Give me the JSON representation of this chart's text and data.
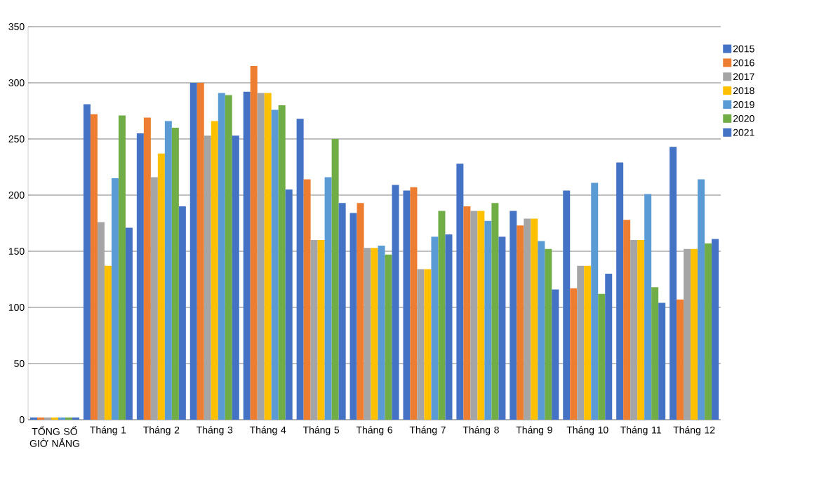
{
  "chart_data": {
    "type": "bar",
    "categories": [
      "TỔNG SỐ GIỜ NẮNG",
      "Tháng 1",
      "Tháng 2",
      "Tháng 3",
      "Tháng 4",
      "Tháng 5",
      "Tháng 6",
      "Tháng 7",
      "Tháng 8",
      "Tháng 9",
      "Tháng 10",
      "Tháng 11",
      "Tháng 12"
    ],
    "series": [
      {
        "name": "2015",
        "color": "#4472c4",
        "values": [
          2,
          281,
          255,
          300,
          292,
          268,
          184,
          204,
          228,
          186,
          204,
          229,
          243
        ]
      },
      {
        "name": "2016",
        "color": "#ed7d31",
        "values": [
          2,
          272,
          269,
          300,
          315,
          214,
          193,
          207,
          190,
          173,
          117,
          178,
          107
        ]
      },
      {
        "name": "2017",
        "color": "#a5a5a5",
        "values": [
          2,
          176,
          216,
          253,
          291,
          160,
          153,
          134,
          186,
          179,
          137,
          160,
          152
        ]
      },
      {
        "name": "2018",
        "color": "#ffc000",
        "values": [
          2,
          137,
          237,
          266,
          291,
          160,
          153,
          134,
          186,
          179,
          137,
          160,
          152
        ]
      },
      {
        "name": "2019",
        "color": "#5b9bd5",
        "values": [
          2,
          215,
          266,
          291,
          276,
          216,
          155,
          163,
          177,
          159,
          211,
          201,
          214
        ]
      },
      {
        "name": "2020",
        "color": "#70ad47",
        "values": [
          2,
          271,
          260,
          289,
          280,
          250,
          147,
          186,
          193,
          152,
          112,
          118,
          157
        ]
      },
      {
        "name": "2021",
        "color": "#4472c4",
        "values": [
          2,
          171,
          190,
          253,
          205,
          193,
          209,
          165,
          163,
          116,
          130,
          104,
          161
        ]
      }
    ],
    "ylim": [
      0,
      350
    ],
    "yticks": [
      0,
      50,
      100,
      150,
      200,
      250,
      300,
      350
    ],
    "grid": "y",
    "legend": "right"
  }
}
